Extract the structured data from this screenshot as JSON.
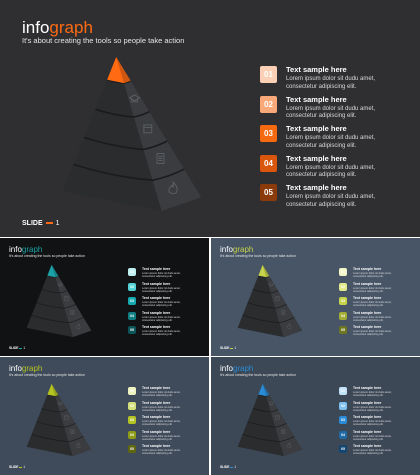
{
  "brand": {
    "prefix": "info",
    "suffix": "graph"
  },
  "subtitle": "It's about creating the tools so people take action",
  "footer": {
    "label": "SLIDE",
    "number": "1"
  },
  "items": [
    {
      "num": "01",
      "title": "Text sample here",
      "desc1": "Lorem ipsum dolor sit dudu amet,",
      "desc2": "consectetur adipiscing elit."
    },
    {
      "num": "02",
      "title": "Text sample here",
      "desc1": "Lorem ipsum dolor sit dudu amet,",
      "desc2": "consectetur adipiscing elit."
    },
    {
      "num": "03",
      "title": "Text sample here",
      "desc1": "Lorem ipsum dolor sit dudu amet,",
      "desc2": "consectetur adipiscing elit."
    },
    {
      "num": "04",
      "title": "Text sample here",
      "desc1": "Lorem ipsum dolor sit dudu amet,",
      "desc2": "consectetur adipiscing elit."
    },
    {
      "num": "05",
      "title": "Text sample here",
      "desc1": "Lorem ipsum dolor sit dudu amet,",
      "desc2": "consectetur adipiscing elit."
    }
  ],
  "icons": [
    "mortarboard-icon",
    "calendar-icon",
    "document-icon",
    "fire-icon"
  ],
  "themes": {
    "orange": {
      "bg": "#2f2f31",
      "accent": "#ff6a13",
      "badges": [
        "#fcd0b4",
        "#f9a87a",
        "#f56a10",
        "#d9560c",
        "#8b3a0b"
      ]
    },
    "teal": {
      "bg": "#111213",
      "accent": "#1aa3a8",
      "badges": [
        "#bfeff0",
        "#53d3d6",
        "#16aab0",
        "#0f7f84",
        "#0a5558"
      ]
    },
    "lime": {
      "bg": "#475567",
      "accent": "#c7d44b",
      "badges": [
        "#f3f6c8",
        "#e2ea8c",
        "#c7d44b",
        "#a2ad34",
        "#6f7620"
      ]
    },
    "olive": {
      "bg": "#3f4b5a",
      "accent": "#b4c423",
      "badges": [
        "#eef3c2",
        "#d4e07a",
        "#b4c423",
        "#8f9c18",
        "#5e6710"
      ]
    },
    "blue": {
      "bg": "#3d4857",
      "accent": "#2a8bd6",
      "badges": [
        "#c3e1f7",
        "#7ec1ee",
        "#2a8bd6",
        "#1d6aa6",
        "#124673"
      ]
    }
  }
}
